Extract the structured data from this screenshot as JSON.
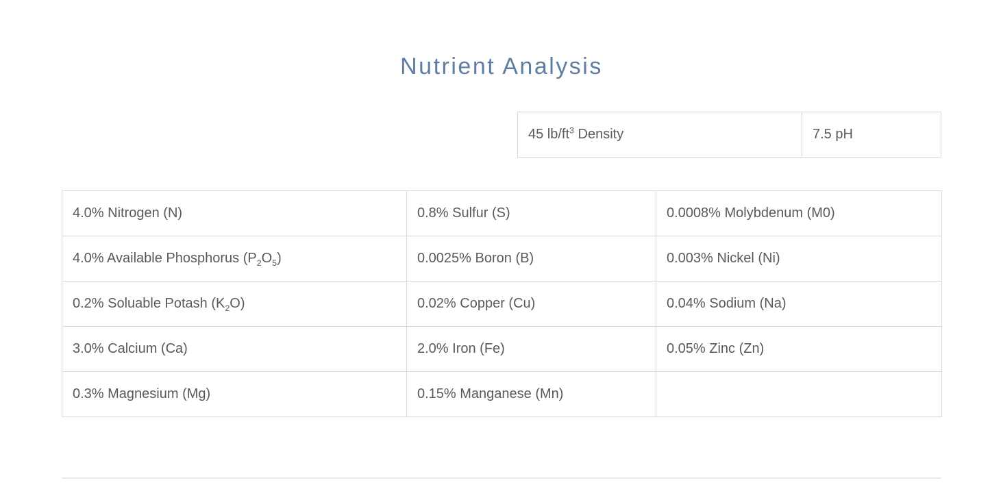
{
  "page_title": "Nutrient Analysis",
  "colors": {
    "title": "#5e7da0",
    "text": "#58595b",
    "cell_border": "#d8d8d8",
    "bottom_divider": "#e9e9e9"
  },
  "properties_table": {
    "cells": [
      {
        "name": "density-cell",
        "segments": [
          {
            "t": "45 lb/ft"
          },
          {
            "t": "3",
            "sup": true
          },
          {
            "t": " Density"
          }
        ]
      },
      {
        "name": "ph-cell",
        "segments": [
          {
            "t": "7.5 pH"
          }
        ]
      }
    ]
  },
  "nutrients_table": {
    "rows": [
      [
        {
          "segments": [
            {
              "t": "4.0% Nitrogen (N)"
            }
          ]
        },
        {
          "segments": [
            {
              "t": "0.8% Sulfur (S)"
            }
          ]
        },
        {
          "segments": [
            {
              "t": "0.0008% Molybdenum (M0)"
            }
          ]
        }
      ],
      [
        {
          "segments": [
            {
              "t": "4.0% Available Phosphorus (P"
            },
            {
              "t": "2",
              "sub": true
            },
            {
              "t": "O"
            },
            {
              "t": "5",
              "sub": true
            },
            {
              "t": ")"
            }
          ]
        },
        {
          "segments": [
            {
              "t": "0.0025% Boron (B)"
            }
          ]
        },
        {
          "segments": [
            {
              "t": "0.003% Nickel (Ni)"
            }
          ]
        }
      ],
      [
        {
          "segments": [
            {
              "t": "0.2% Soluable Potash (K"
            },
            {
              "t": "2",
              "sub": true
            },
            {
              "t": "O)"
            }
          ]
        },
        {
          "segments": [
            {
              "t": "0.02% Copper (Cu)"
            }
          ]
        },
        {
          "segments": [
            {
              "t": "0.04% Sodium (Na)"
            }
          ]
        }
      ],
      [
        {
          "segments": [
            {
              "t": "3.0% Calcium (Ca)"
            }
          ]
        },
        {
          "segments": [
            {
              "t": "2.0% Iron (Fe)"
            }
          ]
        },
        {
          "segments": [
            {
              "t": "0.05% Zinc (Zn)"
            }
          ]
        }
      ],
      [
        {
          "segments": [
            {
              "t": "0.3% Magnesium (Mg)"
            }
          ]
        },
        {
          "segments": [
            {
              "t": "0.15% Manganese (Mn)"
            }
          ]
        },
        {
          "segments": []
        }
      ]
    ]
  }
}
